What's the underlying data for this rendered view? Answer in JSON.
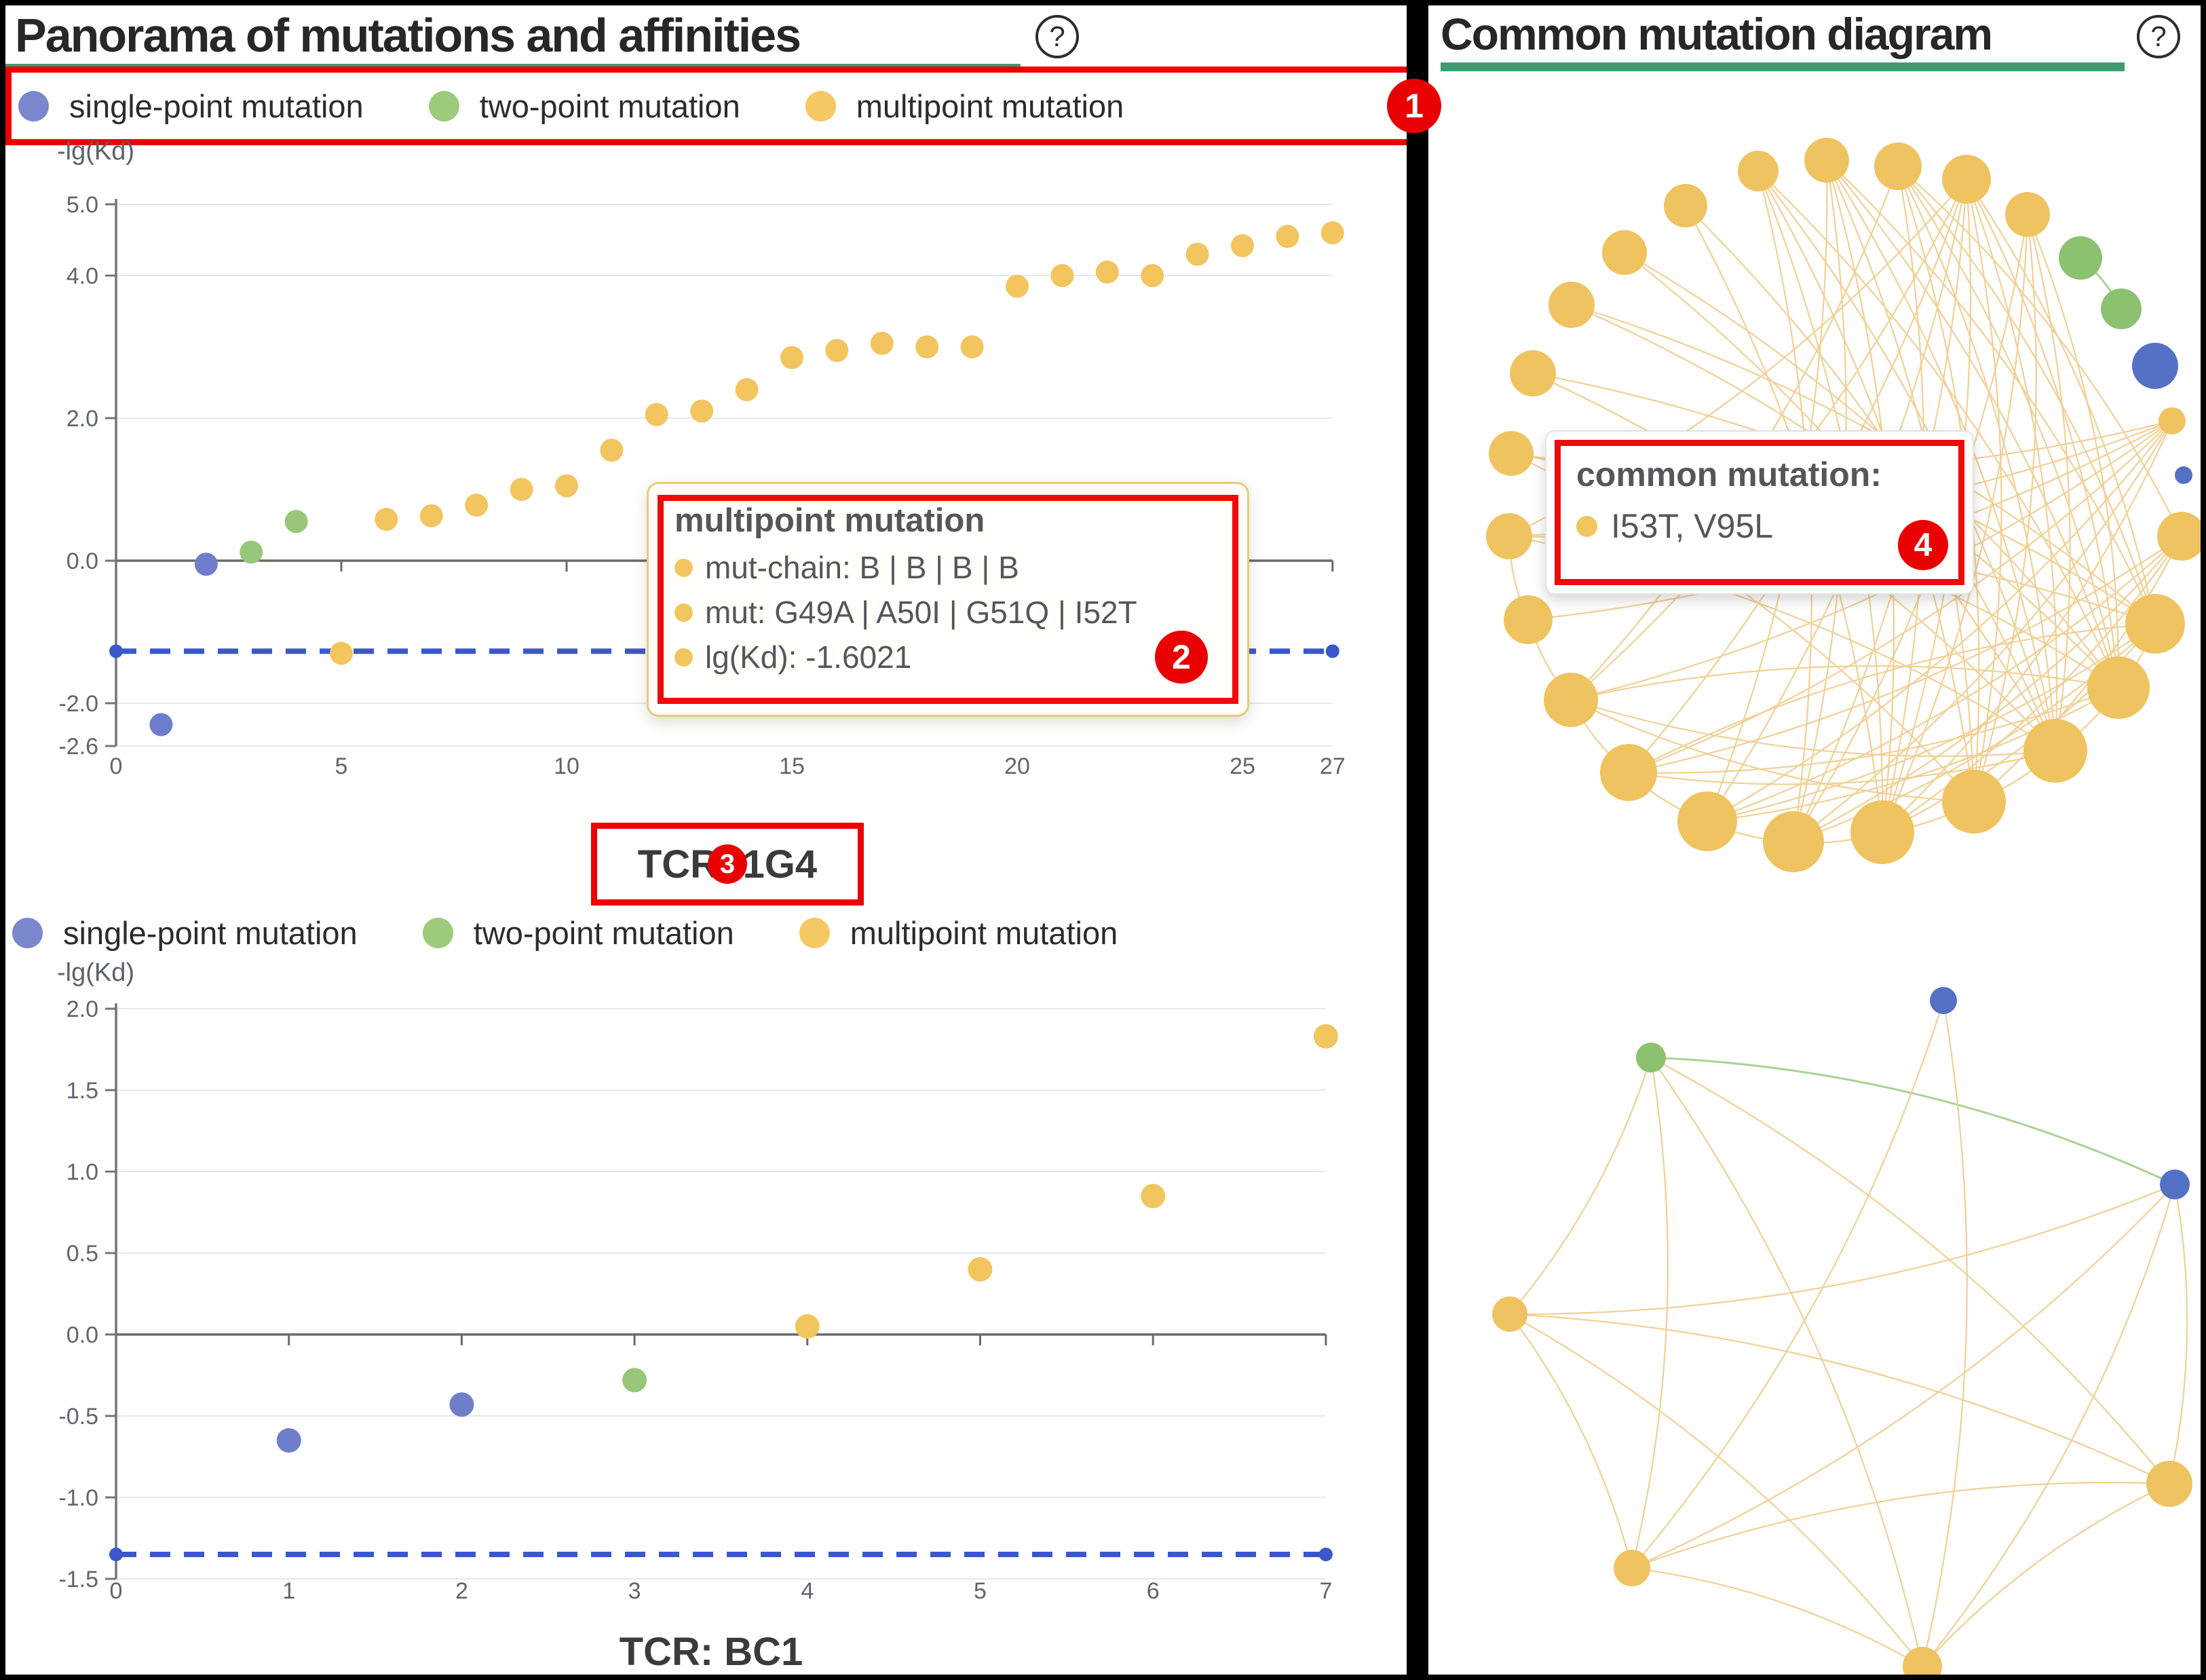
{
  "colors": {
    "accent_red": "#ec0000",
    "green_underline": "#3d9c6e",
    "grid": "#e4e8f3",
    "axis": "#70747c",
    "axis_zero": "#6a6a6a",
    "dash_blue": "#3b57c9",
    "point_single": "#6e7ecb",
    "point_two": "#98c77a",
    "point_multi": "#f2c55f"
  },
  "left": {
    "title": "Panorama of mutations and affinities",
    "help": "?",
    "badges": {
      "legend": "1",
      "tooltip": "2",
      "tcr": "3"
    },
    "tooltip": {
      "title": "multipoint mutation",
      "rows": [
        "mut-chain: B | B | B | B",
        "mut: G49A | A50I | G51Q | I52T",
        "lg(Kd): -1.6021"
      ]
    }
  },
  "right": {
    "title": "Common mutation diagram",
    "help": "?",
    "badges": {
      "tooltip": "4"
    },
    "tooltip": {
      "title": "common mutation:",
      "row": "I53T, V95L"
    }
  },
  "legend": {
    "items": [
      {
        "label": "single-point mutation",
        "color": "#7b87cd"
      },
      {
        "label": "two-point mutation",
        "color": "#9ccb7b"
      },
      {
        "label": "multipoint mutation",
        "color": "#f4c862"
      }
    ]
  },
  "chart_data": [
    {
      "type": "scatter",
      "title": "TCR: 1G4",
      "ylabel": "-lg(Kd)",
      "xlabel": "",
      "legend_entries": [
        "single-point mutation",
        "two-point mutation",
        "multipoint mutation"
      ],
      "xlim": [
        0,
        27
      ],
      "ylim": [
        -2.6,
        5.4
      ],
      "grid": true,
      "x_ticks": [
        {
          "v": 0,
          "l": "0"
        },
        {
          "v": 5,
          "l": "5"
        },
        {
          "v": 10,
          "l": "10"
        },
        {
          "v": 15,
          "l": "15"
        },
        {
          "v": 20,
          "l": "20"
        },
        {
          "v": 25,
          "l": "25"
        },
        {
          "v": 27,
          "l": "27"
        }
      ],
      "y_ticks": [
        {
          "v": 5,
          "l": "5.0"
        },
        {
          "v": 4,
          "l": "4.0"
        },
        {
          "v": 2,
          "l": "2.0"
        },
        {
          "v": 0,
          "l": "0.0"
        },
        {
          "v": -2,
          "l": "-2.0"
        },
        {
          "v": -2.6,
          "l": "-2.6"
        }
      ],
      "baseline": -1.27,
      "points": [
        [
          0,
          -1.27,
          "w"
        ],
        [
          1,
          -2.3,
          "s"
        ],
        [
          2,
          -0.05,
          "s"
        ],
        [
          3,
          0.12,
          "t"
        ],
        [
          4,
          0.55,
          "t"
        ],
        [
          5,
          -1.3,
          "m"
        ],
        [
          6,
          0.58,
          "m"
        ],
        [
          7,
          0.63,
          "m"
        ],
        [
          8,
          0.78,
          "m"
        ],
        [
          9,
          1.0,
          "m"
        ],
        [
          10,
          1.05,
          "m"
        ],
        [
          11,
          1.55,
          "m"
        ],
        [
          12,
          2.05,
          "m"
        ],
        [
          13,
          2.1,
          "m"
        ],
        [
          14,
          2.4,
          "m"
        ],
        [
          15,
          2.85,
          "m"
        ],
        [
          16,
          2.95,
          "m"
        ],
        [
          17,
          3.05,
          "m"
        ],
        [
          18,
          3.0,
          "m"
        ],
        [
          19,
          3.0,
          "m"
        ],
        [
          20,
          3.85,
          "m"
        ],
        [
          21,
          4.0,
          "m"
        ],
        [
          22,
          4.05,
          "m"
        ],
        [
          23,
          4.0,
          "m"
        ],
        [
          24,
          4.3,
          "m"
        ],
        [
          25,
          4.42,
          "m"
        ],
        [
          26,
          4.55,
          "m"
        ],
        [
          27,
          4.6,
          "m"
        ],
        [
          27,
          -1.27,
          "w"
        ]
      ]
    },
    {
      "type": "scatter",
      "title": "TCR: BC1",
      "ylabel": "-lg(Kd)",
      "xlabel": "",
      "legend_entries": [
        "single-point mutation",
        "two-point mutation",
        "multipoint mutation"
      ],
      "xlim": [
        0,
        7
      ],
      "ylim": [
        -1.75,
        2.1
      ],
      "grid": true,
      "x_ticks": [
        {
          "v": 0,
          "l": "0"
        },
        {
          "v": 1,
          "l": "1"
        },
        {
          "v": 2,
          "l": "2"
        },
        {
          "v": 3,
          "l": "3"
        },
        {
          "v": 4,
          "l": "4"
        },
        {
          "v": 5,
          "l": "5"
        },
        {
          "v": 6,
          "l": "6"
        },
        {
          "v": 7,
          "l": "7"
        }
      ],
      "y_ticks": [
        {
          "v": 2,
          "l": "2.0"
        },
        {
          "v": 1.5,
          "l": "1.5"
        },
        {
          "v": 1,
          "l": "1.0"
        },
        {
          "v": 0.5,
          "l": "0.5"
        },
        {
          "v": 0,
          "l": "0.0"
        },
        {
          "v": -0.5,
          "l": "-0.5"
        },
        {
          "v": -1,
          "l": "-1.0"
        },
        {
          "v": -1.5,
          "l": "-1.5"
        }
      ],
      "baseline": -1.35,
      "points": [
        [
          0,
          -1.35,
          "w"
        ],
        [
          1,
          -0.65,
          "s"
        ],
        [
          2,
          -0.43,
          "s"
        ],
        [
          3,
          -0.28,
          "t"
        ],
        [
          4,
          0.05,
          "m"
        ],
        [
          5,
          0.4,
          "m"
        ],
        [
          6,
          0.85,
          "m"
        ],
        [
          7,
          1.83,
          "m"
        ],
        [
          7,
          -1.35,
          "w"
        ]
      ]
    },
    {
      "type": "network",
      "name": "common-mutation-circle",
      "node_colors": {
        "y": "#efc360",
        "g": "#8cc16f",
        "b": "#5571c5"
      },
      "edge_color": "#f1d096",
      "green_edge_color": "#a9d396",
      "nodes": [
        [
          486,
          244,
          30,
          "y"
        ],
        [
          587,
          228,
          33,
          "y"
        ],
        [
          692,
          237,
          35,
          "y"
        ],
        [
          793,
          256,
          36,
          "y"
        ],
        [
          883,
          308,
          33,
          "y"
        ],
        [
          961,
          372,
          32,
          "g"
        ],
        [
          1021,
          447,
          30,
          "g"
        ],
        [
          1071,
          531,
          34,
          "b"
        ],
        [
          1096,
          612,
          20,
          "y"
        ],
        [
          1113,
          692,
          13,
          "b"
        ],
        [
          1110,
          782,
          36,
          "y"
        ],
        [
          1071,
          911,
          44,
          "y"
        ],
        [
          1017,
          1005,
          46,
          "y"
        ],
        [
          924,
          1098,
          47,
          "y"
        ],
        [
          804,
          1173,
          47,
          "y"
        ],
        [
          669,
          1218,
          47,
          "y"
        ],
        [
          538,
          1232,
          45,
          "y"
        ],
        [
          411,
          1202,
          44,
          "y"
        ],
        [
          295,
          1130,
          42,
          "y"
        ],
        [
          210,
          1023,
          40,
          "y"
        ],
        [
          147,
          905,
          36,
          "y"
        ],
        [
          119,
          782,
          34,
          "y"
        ],
        [
          122,
          660,
          33,
          "y"
        ],
        [
          154,
          542,
          34,
          "y"
        ],
        [
          211,
          441,
          34,
          "y"
        ],
        [
          289,
          364,
          33,
          "y"
        ],
        [
          379,
          295,
          32,
          "y"
        ]
      ],
      "edges": [
        [
          11,
          12
        ],
        [
          12,
          13
        ],
        [
          13,
          14
        ],
        [
          14,
          15
        ],
        [
          15,
          16
        ],
        [
          16,
          17
        ],
        [
          17,
          18
        ],
        [
          18,
          19
        ],
        [
          19,
          20
        ],
        [
          20,
          21
        ],
        [
          0,
          12
        ],
        [
          0,
          13
        ],
        [
          0,
          14
        ],
        [
          0,
          15
        ],
        [
          0,
          16
        ],
        [
          1,
          11
        ],
        [
          1,
          12
        ],
        [
          1,
          13
        ],
        [
          1,
          14
        ],
        [
          1,
          15
        ],
        [
          1,
          16
        ],
        [
          1,
          17
        ],
        [
          2,
          10
        ],
        [
          2,
          11
        ],
        [
          2,
          12
        ],
        [
          2,
          13
        ],
        [
          2,
          14
        ],
        [
          2,
          15
        ],
        [
          2,
          19
        ],
        [
          3,
          11
        ],
        [
          3,
          12
        ],
        [
          3,
          13
        ],
        [
          3,
          14
        ],
        [
          3,
          15
        ],
        [
          3,
          16
        ],
        [
          3,
          17
        ],
        [
          3,
          18
        ],
        [
          3,
          19
        ],
        [
          3,
          21
        ],
        [
          4,
          12
        ],
        [
          4,
          13
        ],
        [
          4,
          14
        ],
        [
          4,
          15
        ],
        [
          4,
          16
        ],
        [
          8,
          15
        ],
        [
          8,
          16
        ],
        [
          8,
          17
        ],
        [
          8,
          18
        ],
        [
          8,
          19
        ],
        [
          8,
          20
        ],
        [
          8,
          21
        ],
        [
          8,
          22
        ],
        [
          10,
          14
        ],
        [
          10,
          15
        ],
        [
          10,
          16
        ],
        [
          10,
          17
        ],
        [
          10,
          18
        ],
        [
          11,
          15
        ],
        [
          11,
          16
        ],
        [
          11,
          17
        ],
        [
          12,
          17
        ],
        [
          12,
          18
        ],
        [
          13,
          18
        ],
        [
          13,
          19
        ],
        [
          14,
          19
        ],
        [
          25,
          12
        ],
        [
          25,
          13
        ],
        [
          24,
          11
        ],
        [
          24,
          12
        ],
        [
          26,
          13
        ],
        [
          26,
          15
        ],
        [
          23,
          11
        ],
        [
          23,
          13
        ],
        [
          22,
          12
        ],
        [
          22,
          14
        ],
        [
          21,
          11
        ],
        [
          21,
          13
        ],
        [
          19,
          12
        ],
        [
          18,
          11
        ],
        [
          5,
          6,
          "g"
        ]
      ]
    },
    {
      "type": "network",
      "name": "common-mutation-small",
      "node_colors": {
        "y": "#efc360",
        "g": "#8cc16f",
        "b": "#5571c5"
      },
      "edge_color": "#f1d096",
      "green_edge_color": "#a9d396",
      "nodes": [
        [
          759,
          1466,
          20,
          "b"
        ],
        [
          328,
          1550,
          22,
          "g"
        ],
        [
          1100,
          1737,
          22,
          "b"
        ],
        [
          120,
          1928,
          26,
          "y"
        ],
        [
          1092,
          2178,
          34,
          "y"
        ],
        [
          300,
          2302,
          27,
          "y"
        ],
        [
          728,
          2447,
          29,
          "y"
        ]
      ],
      "edges": [
        [
          1,
          2,
          "g"
        ],
        [
          0,
          5
        ],
        [
          0,
          6
        ],
        [
          1,
          3
        ],
        [
          1,
          5
        ],
        [
          1,
          6
        ],
        [
          1,
          4
        ],
        [
          2,
          3
        ],
        [
          2,
          5
        ],
        [
          2,
          6
        ],
        [
          2,
          4
        ],
        [
          3,
          5
        ],
        [
          3,
          6
        ],
        [
          3,
          4
        ],
        [
          5,
          6
        ],
        [
          5,
          4
        ],
        [
          6,
          4
        ]
      ]
    }
  ]
}
